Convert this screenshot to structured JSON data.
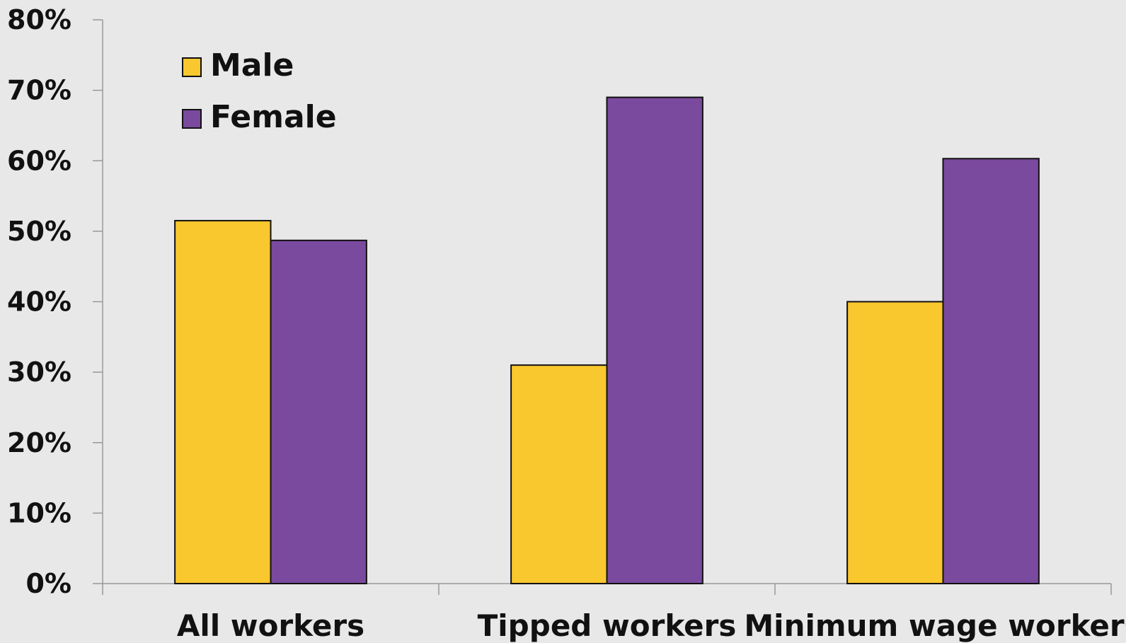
{
  "chart_data": {
    "type": "bar",
    "title": "",
    "xlabel": "",
    "ylabel": "",
    "categories": [
      "All workers",
      "Tipped workers",
      "Minimum wage workers"
    ],
    "series": [
      {
        "name": "Male",
        "values": [
          51.5,
          31.0,
          40.0
        ],
        "color": "#f9c72e"
      },
      {
        "name": "Female",
        "values": [
          48.7,
          69.0,
          60.3
        ],
        "color": "#7a4a9e"
      }
    ],
    "ylim": [
      0,
      80
    ],
    "yticks": [
      0,
      10,
      20,
      30,
      40,
      50,
      60,
      70,
      80
    ],
    "ytick_labels": [
      "0%",
      "10%",
      "20%",
      "30%",
      "40%",
      "50%",
      "60%",
      "70%",
      "80%"
    ],
    "grid": false,
    "legend": "top-left",
    "background": "#e8e8e8",
    "bar_outline": "#111111",
    "axis_color": "#999999"
  }
}
